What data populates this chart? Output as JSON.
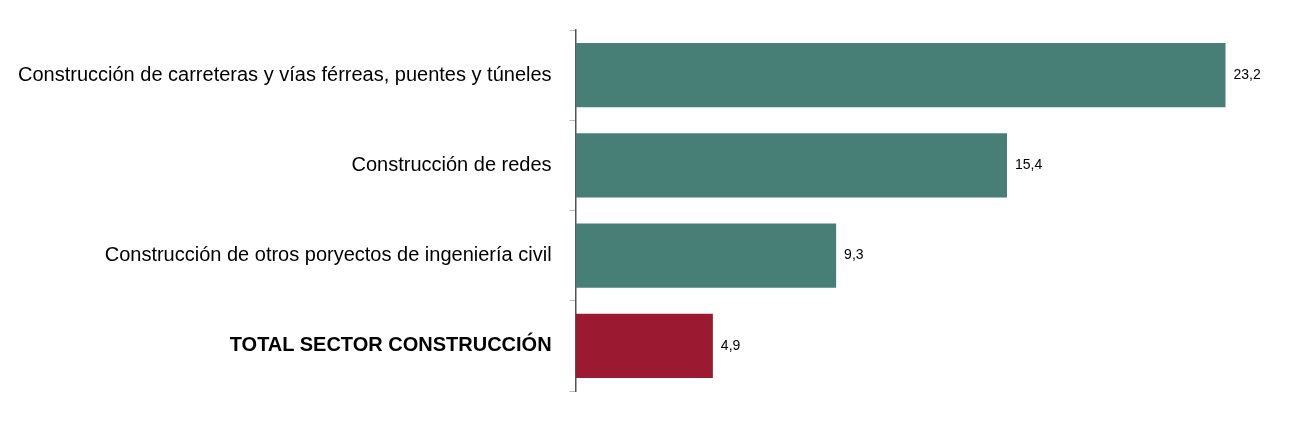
{
  "chart_data": {
    "type": "bar",
    "orientation": "horizontal",
    "categories": [
      "Construcción de carreteras y vías férreas, puentes y túneles",
      "Construcción de redes",
      "Construcción de otros poryectos de ingeniería civil",
      "TOTAL SECTOR CONSTRUCCIÓN"
    ],
    "values": [
      23.2,
      15.4,
      9.3,
      4.9
    ],
    "colors": [
      "#477f77",
      "#477f77",
      "#477f77",
      "#9b1a31"
    ],
    "value_labels": [
      "23,2",
      "15,4",
      "9,3",
      "4,9"
    ],
    "grid": false,
    "legend": false
  }
}
